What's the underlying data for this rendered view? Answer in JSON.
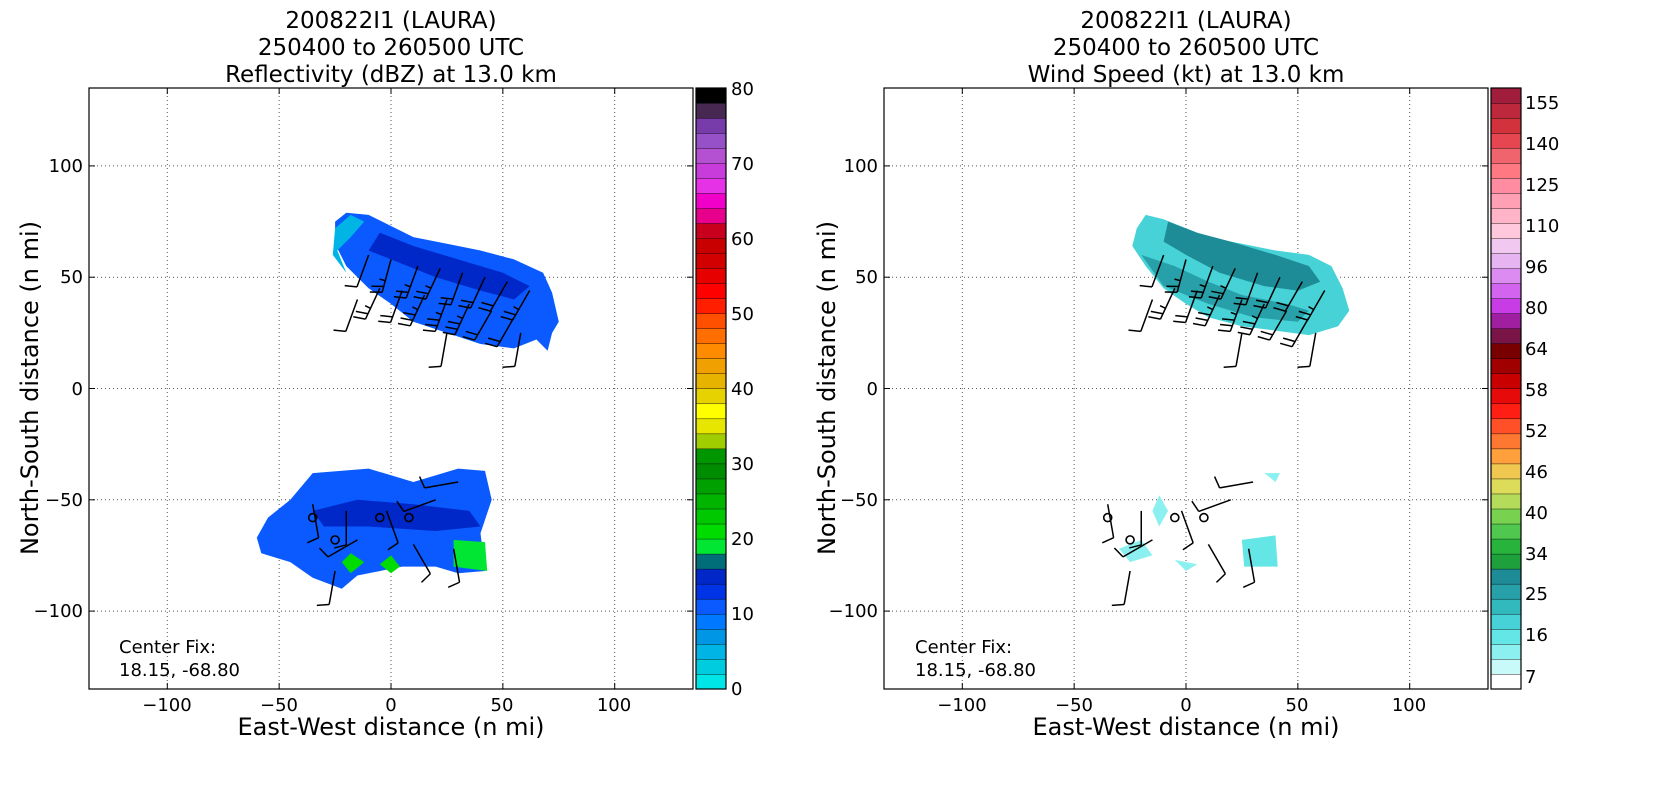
{
  "chart_data": [
    {
      "type": "heatmap",
      "title_lines": [
        "200822I1 (LAURA)",
        "250400 to 260500 UTC",
        "Reflectivity (dBZ) at 13.0 km"
      ],
      "xlabel": "East-West distance (n mi)",
      "ylabel": "North-South distance (n mi)",
      "xlim": [
        -135,
        135
      ],
      "ylim": [
        -135,
        135
      ],
      "xticks": [
        -100,
        -50,
        0,
        50,
        100
      ],
      "yticks": [
        -100,
        -50,
        0,
        50,
        100
      ],
      "tick_labels_x": [
        "−100",
        "−50",
        "0",
        "50",
        "100"
      ],
      "tick_labels_y": [
        "−100",
        "−50",
        "0",
        "50",
        "100"
      ],
      "grid": true,
      "annotation": {
        "line1": "Center Fix:",
        "line2": "18.15, -68.80"
      },
      "colorbar": {
        "label_values": [
          "0",
          "10",
          "20",
          "30",
          "40",
          "50",
          "60",
          "70",
          "80"
        ],
        "colors": [
          "#00e6e6",
          "#00cce0",
          "#00b4e6",
          "#0096e6",
          "#0078ff",
          "#0a5aff",
          "#0032e6",
          "#0028c8",
          "#006e78",
          "#00e632",
          "#00dc00",
          "#00c800",
          "#00b400",
          "#00a000",
          "#008c00",
          "#009600",
          "#a0cd00",
          "#e6e600",
          "#ffff00",
          "#e6d200",
          "#e6b400",
          "#f0a000",
          "#ff8c00",
          "#ff6e00",
          "#ff5000",
          "#ff1e00",
          "#ff0000",
          "#e60000",
          "#d20000",
          "#c80000",
          "#c8001e",
          "#e6008c",
          "#f000c8",
          "#e632e6",
          "#c83cdc",
          "#b450d2",
          "#9650c8",
          "#783caa",
          "#462850",
          "#000000"
        ]
      },
      "regions": [
        {
          "name": "upper-band",
          "fill": "#0a5aff",
          "points": [
            [
              -25,
              75
            ],
            [
              -20,
              79
            ],
            [
              -10,
              78
            ],
            [
              0,
              73
            ],
            [
              10,
              68
            ],
            [
              25,
              65
            ],
            [
              40,
              62
            ],
            [
              55,
              58
            ],
            [
              68,
              52
            ],
            [
              72,
              43
            ],
            [
              75,
              30
            ],
            [
              72,
              25
            ],
            [
              70,
              17
            ],
            [
              65,
              22
            ],
            [
              55,
              18
            ],
            [
              40,
              20
            ],
            [
              25,
              25
            ],
            [
              10,
              30
            ],
            [
              0,
              38
            ],
            [
              -10,
              45
            ],
            [
              -20,
              55
            ],
            [
              -25,
              65
            ]
          ]
        },
        {
          "name": "upper-core",
          "fill": "#0028c8",
          "points": [
            [
              -5,
              70
            ],
            [
              10,
              64
            ],
            [
              30,
              58
            ],
            [
              50,
              52
            ],
            [
              62,
              46
            ],
            [
              55,
              40
            ],
            [
              40,
              44
            ],
            [
              20,
              50
            ],
            [
              0,
              58
            ],
            [
              -10,
              62
            ]
          ]
        },
        {
          "name": "upper-edge",
          "fill": "#00b4e6",
          "points": [
            [
              -25,
              72
            ],
            [
              -18,
              78
            ],
            [
              -12,
              75
            ],
            [
              -18,
              68
            ],
            [
              -24,
              62
            ],
            [
              -20,
              52
            ],
            [
              -26,
              60
            ]
          ]
        },
        {
          "name": "lower-band",
          "fill": "#0a5aff",
          "points": [
            [
              -55,
              -58
            ],
            [
              -45,
              -50
            ],
            [
              -35,
              -38
            ],
            [
              -10,
              -36
            ],
            [
              10,
              -42
            ],
            [
              30,
              -36
            ],
            [
              42,
              -37
            ],
            [
              45,
              -50
            ],
            [
              40,
              -65
            ],
            [
              42,
              -82
            ],
            [
              30,
              -83
            ],
            [
              20,
              -80
            ],
            [
              5,
              -80
            ],
            [
              -15,
              -84
            ],
            [
              -22,
              -90
            ],
            [
              -35,
              -85
            ],
            [
              -45,
              -78
            ],
            [
              -58,
              -74
            ],
            [
              -60,
              -67
            ]
          ]
        },
        {
          "name": "lower-core",
          "fill": "#0028c8",
          "points": [
            [
              -35,
              -55
            ],
            [
              -15,
              -50
            ],
            [
              10,
              -52
            ],
            [
              35,
              -55
            ],
            [
              40,
              -62
            ],
            [
              20,
              -64
            ],
            [
              -10,
              -62
            ],
            [
              -30,
              -62
            ]
          ]
        },
        {
          "name": "lower-green",
          "fill": "#00e632",
          "points": [
            [
              28,
              -68
            ],
            [
              42,
              -69
            ],
            [
              43,
              -82
            ],
            [
              28,
              -80
            ]
          ]
        },
        {
          "name": "lower-green-2",
          "fill": "#00dc00",
          "points": [
            [
              -22,
              -78
            ],
            [
              -18,
              -74
            ],
            [
              -12,
              -78
            ],
            [
              -18,
              -83
            ]
          ]
        },
        {
          "name": "lower-green-3",
          "fill": "#00dc00",
          "points": [
            [
              -5,
              -79
            ],
            [
              0,
              -75
            ],
            [
              4,
              -80
            ],
            [
              0,
              -83
            ]
          ]
        }
      ]
    },
    {
      "type": "heatmap",
      "title_lines": [
        "200822I1 (LAURA)",
        "250400 to 260500 UTC",
        "Wind Speed (kt) at 13.0 km"
      ],
      "xlabel": "East-West distance (n mi)",
      "ylabel": "North-South distance (n mi)",
      "xlim": [
        -135,
        135
      ],
      "ylim": [
        -135,
        135
      ],
      "xticks": [
        -100,
        -50,
        0,
        50,
        100
      ],
      "yticks": [
        -100,
        -50,
        0,
        50,
        100
      ],
      "tick_labels_x": [
        "−100",
        "−50",
        "0",
        "50",
        "100"
      ],
      "tick_labels_y": [
        "−100",
        "−50",
        "0",
        "50",
        "100"
      ],
      "grid": true,
      "annotation": {
        "line1": "Center Fix:",
        "line2": "18.15, -68.80"
      },
      "colorbar": {
        "label_values": [
          "7",
          "16",
          "25",
          "34",
          "40",
          "46",
          "52",
          "58",
          "64",
          "80",
          "96",
          "110",
          "125",
          "140",
          "155"
        ],
        "colors": [
          "#ffffff",
          "#c8fafa",
          "#8cf0f0",
          "#64e6e6",
          "#46d2d6",
          "#32b9be",
          "#28a0aa",
          "#1e8c96",
          "#1ea03c",
          "#28b43c",
          "#50c850",
          "#78d250",
          "#b4dc5a",
          "#dcdc5a",
          "#f0c850",
          "#ffa03c",
          "#ff7832",
          "#ff5028",
          "#ff1e14",
          "#e60a0a",
          "#c80000",
          "#a00000",
          "#780000",
          "#781446",
          "#a01ea0",
          "#c83ce6",
          "#d264f0",
          "#dc8cf0",
          "#e6b4f0",
          "#f0c8f0",
          "#ffc8dc",
          "#ffb4c8",
          "#ffa0b4",
          "#ff8ca0",
          "#ff7882",
          "#f0646e",
          "#e64650",
          "#d2323c",
          "#be283c",
          "#a01e3c"
        ]
      },
      "regions": [
        {
          "name": "upper-band",
          "fill": "#46d2d6",
          "points": [
            [
              -22,
              72
            ],
            [
              -18,
              78
            ],
            [
              -10,
              76
            ],
            [
              0,
              72
            ],
            [
              10,
              68
            ],
            [
              25,
              65
            ],
            [
              40,
              62
            ],
            [
              55,
              60
            ],
            [
              65,
              55
            ],
            [
              70,
              45
            ],
            [
              73,
              35
            ],
            [
              68,
              28
            ],
            [
              55,
              24
            ],
            [
              40,
              26
            ],
            [
              25,
              28
            ],
            [
              10,
              32
            ],
            [
              0,
              38
            ],
            [
              -10,
              45
            ],
            [
              -18,
              55
            ],
            [
              -24,
              64
            ]
          ]
        },
        {
          "name": "upper-core",
          "fill": "#1e8c96",
          "points": [
            [
              -8,
              75
            ],
            [
              5,
              70
            ],
            [
              20,
              66
            ],
            [
              40,
              60
            ],
            [
              55,
              55
            ],
            [
              60,
              48
            ],
            [
              50,
              44
            ],
            [
              35,
              46
            ],
            [
              15,
              52
            ],
            [
              0,
              60
            ],
            [
              -10,
              66
            ]
          ]
        },
        {
          "name": "upper-inner",
          "fill": "#28a0aa",
          "points": [
            [
              -20,
              60
            ],
            [
              -5,
              55
            ],
            [
              10,
              48
            ],
            [
              25,
              42
            ],
            [
              45,
              38
            ],
            [
              55,
              35
            ],
            [
              50,
              30
            ],
            [
              30,
              32
            ],
            [
              10,
              38
            ],
            [
              -10,
              46
            ]
          ]
        },
        {
          "name": "lower-speck-1",
          "fill": "#8cf0f0",
          "points": [
            [
              -15,
              -55
            ],
            [
              -12,
              -48
            ],
            [
              -8,
              -55
            ],
            [
              -12,
              -62
            ]
          ]
        },
        {
          "name": "lower-speck-2",
          "fill": "#8cf0f0",
          "points": [
            [
              -30,
              -72
            ],
            [
              -20,
              -68
            ],
            [
              -15,
              -75
            ],
            [
              -25,
              -78
            ]
          ]
        },
        {
          "name": "lower-speck-3",
          "fill": "#64e6e6",
          "points": [
            [
              25,
              -68
            ],
            [
              40,
              -66
            ],
            [
              41,
              -80
            ],
            [
              26,
              -80
            ]
          ]
        },
        {
          "name": "lower-speck-4",
          "fill": "#8cf0f0",
          "points": [
            [
              -5,
              -77
            ],
            [
              5,
              -79
            ],
            [
              0,
              -82
            ]
          ]
        },
        {
          "name": "lower-speck-5",
          "fill": "#8cf0f0",
          "points": [
            [
              35,
              -38
            ],
            [
              42,
              -38
            ],
            [
              40,
              -42
            ]
          ]
        }
      ]
    }
  ],
  "wind_barbs": [
    {
      "x": -10,
      "y": 60,
      "dir": 200,
      "kt": 10
    },
    {
      "x": 0,
      "y": 58,
      "dir": 195,
      "kt": 15
    },
    {
      "x": 12,
      "y": 55,
      "dir": 200,
      "kt": 15
    },
    {
      "x": 22,
      "y": 54,
      "dir": 205,
      "kt": 15
    },
    {
      "x": 32,
      "y": 52,
      "dir": 200,
      "kt": 20
    },
    {
      "x": 42,
      "y": 50,
      "dir": 205,
      "kt": 20
    },
    {
      "x": 52,
      "y": 48,
      "dir": 210,
      "kt": 20
    },
    {
      "x": 62,
      "y": 44,
      "dir": 210,
      "kt": 15
    },
    {
      "x": -5,
      "y": 45,
      "dir": 205,
      "kt": 15
    },
    {
      "x": 5,
      "y": 44,
      "dir": 200,
      "kt": 20
    },
    {
      "x": 15,
      "y": 42,
      "dir": 205,
      "kt": 25
    },
    {
      "x": 25,
      "y": 40,
      "dir": 200,
      "kt": 25
    },
    {
      "x": 35,
      "y": 38,
      "dir": 205,
      "kt": 25
    },
    {
      "x": 45,
      "y": 35,
      "dir": 210,
      "kt": 20
    },
    {
      "x": 55,
      "y": 32,
      "dir": 210,
      "kt": 20
    },
    {
      "x": -15,
      "y": 40,
      "dir": 200,
      "kt": 10
    },
    {
      "x": 25,
      "y": 25,
      "dir": 190,
      "kt": 10
    },
    {
      "x": 58,
      "y": 25,
      "dir": 190,
      "kt": 10
    },
    {
      "x": -35,
      "y": -52,
      "dir": 170,
      "kt": 10
    },
    {
      "x": -20,
      "y": -55,
      "dir": 180,
      "kt": 10
    },
    {
      "x": -2,
      "y": -55,
      "dir": 160,
      "kt": 10
    },
    {
      "x": 20,
      "y": -50,
      "dir": 250,
      "kt": 10
    },
    {
      "x": 30,
      "y": -42,
      "dir": 260,
      "kt": 10
    },
    {
      "x": -15,
      "y": -68,
      "dir": 240,
      "kt": 10
    },
    {
      "x": 10,
      "y": -70,
      "dir": 150,
      "kt": 10
    },
    {
      "x": 28,
      "y": -72,
      "dir": 170,
      "kt": 10
    },
    {
      "x": -25,
      "y": -82,
      "dir": 190,
      "kt": 10
    }
  ],
  "calm_circles": [
    {
      "x": -35,
      "y": -58
    },
    {
      "x": -5,
      "y": -58
    },
    {
      "x": 8,
      "y": -58
    },
    {
      "x": -25,
      "y": -68
    }
  ]
}
